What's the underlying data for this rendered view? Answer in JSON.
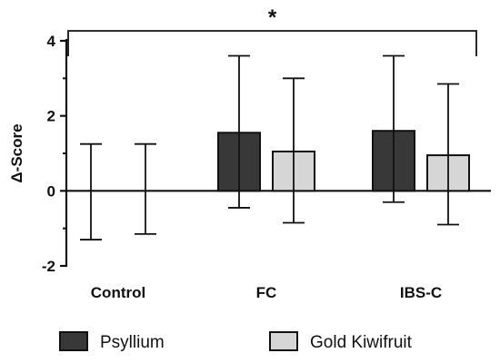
{
  "chart_data": {
    "type": "bar",
    "ylabel": "Δ-Score",
    "ylim": [
      -2,
      4
    ],
    "yticks": [
      -2,
      0,
      2,
      4
    ],
    "categories": [
      "Control",
      "FC",
      "IBS-C"
    ],
    "series": [
      {
        "name": "Psyllium",
        "color": "#383838",
        "values": [
          0,
          1.55,
          1.6
        ],
        "err_low": [
          -1.3,
          -0.45,
          -0.3
        ],
        "err_high": [
          1.25,
          3.6,
          3.6
        ]
      },
      {
        "name": "Gold Kiwifruit",
        "color": "#d6d6d6",
        "values": [
          0,
          1.05,
          0.95
        ],
        "err_low": [
          -1.15,
          -0.85,
          -0.9
        ],
        "err_high": [
          1.25,
          3.0,
          2.85
        ]
      }
    ],
    "significance": {
      "label": "*",
      "from_category": "Control",
      "to_category": "IBS-C"
    },
    "legend_position": "bottom",
    "grid": false
  }
}
